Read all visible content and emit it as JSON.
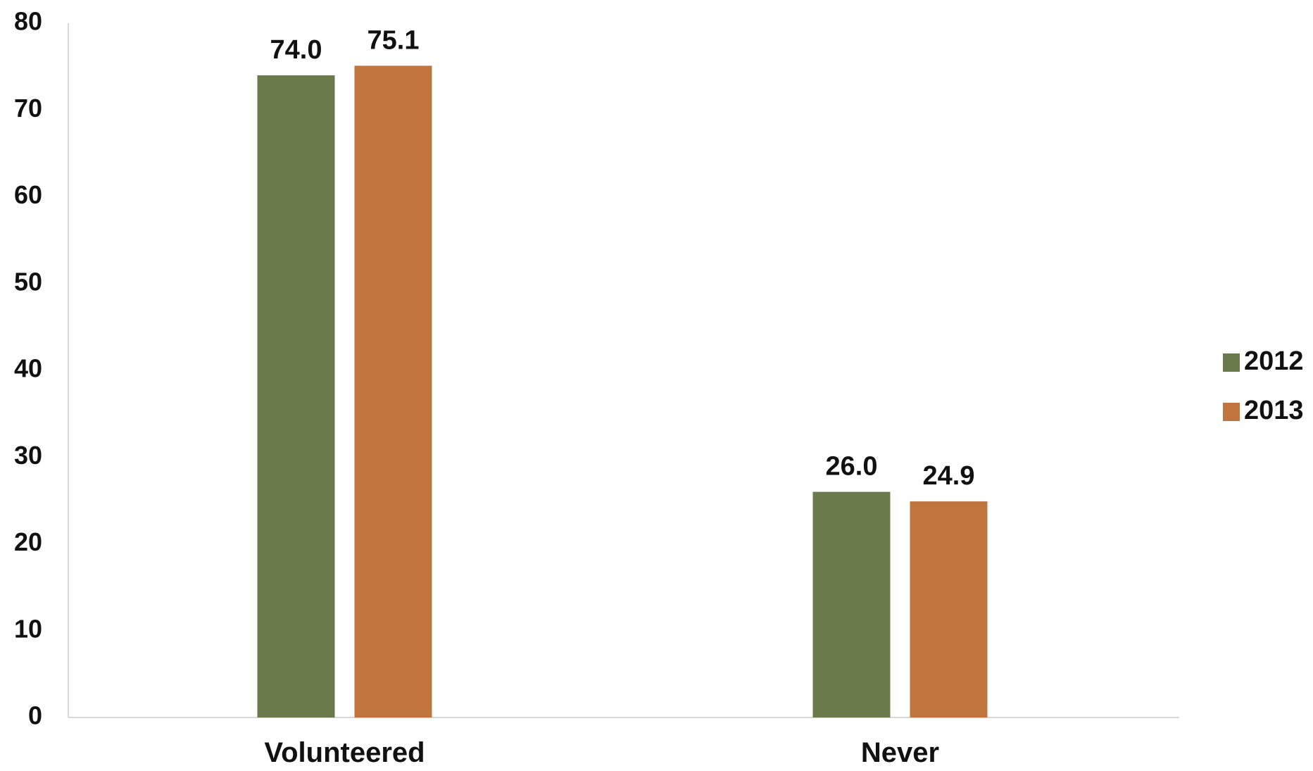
{
  "chart_data": {
    "type": "bar",
    "categories": [
      "Volunteered",
      "Never"
    ],
    "series": [
      {
        "name": "2012",
        "values": [
          74.0,
          26.0
        ],
        "color": "#6a7a4a",
        "labels": [
          "74.0",
          "26.0"
        ]
      },
      {
        "name": "2013",
        "values": [
          75.1,
          24.9
        ],
        "color": "#c0743e",
        "labels": [
          "75.1",
          "24.9"
        ]
      }
    ],
    "title": "",
    "xlabel": "",
    "ylabel": "",
    "ylim": [
      0,
      80
    ],
    "yticks": [
      "0",
      "10",
      "20",
      "30",
      "40",
      "50",
      "60",
      "70",
      "80"
    ],
    "grid": false,
    "legend_position": "right"
  }
}
